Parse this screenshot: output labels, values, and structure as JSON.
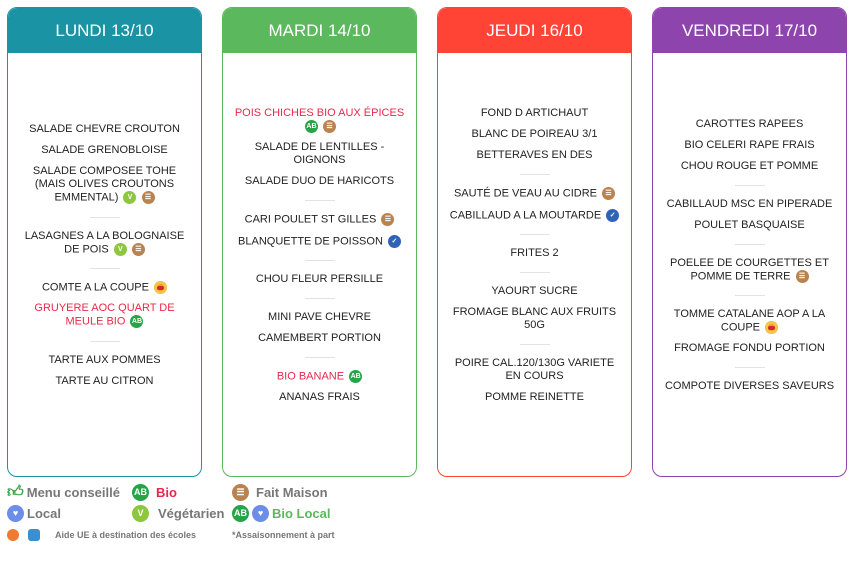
{
  "colors": {
    "lundi": "#1a93a5",
    "mardi": "#5cb85c",
    "jeudi": "#ff4436",
    "vendredi": "#8e44ad"
  },
  "days": [
    {
      "key": "lundi",
      "title": "LUNDI 13/10",
      "groups": [
        [
          {
            "text": "SALADE CHEVRE CROUTON",
            "icons": []
          },
          {
            "text": "SALADE GRENOBLOISE",
            "icons": []
          },
          {
            "text": "SALADE COMPOSEE TOHE (MAIS OLIVES CROUTONS EMMENTAL)",
            "icons": [
              "veg",
              "fm"
            ]
          }
        ],
        [
          {
            "text": "LASAGNES A LA BOLOGNAISE DE POIS",
            "icons": [
              "veg",
              "fm"
            ]
          }
        ],
        [
          {
            "text": "COMTE A LA COUPE",
            "icons": [
              "aop"
            ]
          },
          {
            "text": "GRUYERE AOC QUART DE MEULE BIO",
            "red": true,
            "icons": [
              "bio"
            ]
          }
        ],
        [
          {
            "text": "TARTE AUX POMMES",
            "icons": []
          },
          {
            "text": "TARTE AU CITRON",
            "icons": []
          }
        ]
      ]
    },
    {
      "key": "mardi",
      "title": "MARDI 14/10",
      "groups": [
        [
          {
            "text": "POIS CHICHES BIO AUX ÉPICES",
            "red": true,
            "icons": [
              "bio",
              "fm"
            ]
          },
          {
            "text": "SALADE DE LENTILLES - OIGNONS",
            "icons": []
          },
          {
            "text": "SALADE DUO DE HARICOTS",
            "icons": []
          }
        ],
        [
          {
            "text": "CARI POULET ST GILLES",
            "icons": [
              "fm"
            ]
          },
          {
            "text": "BLANQUETTE DE POISSON",
            "icons": [
              "msc"
            ]
          }
        ],
        [
          {
            "text": "CHOU FLEUR PERSILLE",
            "icons": []
          }
        ],
        [
          {
            "text": "MINI PAVE CHEVRE",
            "icons": []
          },
          {
            "text": "CAMEMBERT PORTION",
            "icons": []
          }
        ],
        [
          {
            "text": "BIO BANANE",
            "red": true,
            "icons": [
              "bio"
            ]
          },
          {
            "text": "ANANAS FRAIS",
            "icons": []
          }
        ]
      ]
    },
    {
      "key": "jeudi",
      "title": "JEUDI 16/10",
      "groups": [
        [
          {
            "text": "FOND D ARTICHAUT",
            "icons": []
          },
          {
            "text": "BLANC DE POIREAU 3/1",
            "icons": []
          },
          {
            "text": "BETTERAVES EN DES",
            "icons": []
          }
        ],
        [
          {
            "text": "SAUTÉ DE VEAU AU CIDRE",
            "icons": [
              "fm"
            ]
          },
          {
            "text": "CABILLAUD A LA MOUTARDE",
            "icons": [
              "msc"
            ]
          }
        ],
        [
          {
            "text": "FRITES 2",
            "icons": []
          }
        ],
        [
          {
            "text": "YAOURT SUCRE",
            "icons": []
          },
          {
            "text": "FROMAGE BLANC AUX FRUITS 50G",
            "icons": []
          }
        ],
        [
          {
            "text": "POIRE CAL.120/130G VARIETE EN COURS",
            "icons": []
          },
          {
            "text": "POMME REINETTE",
            "icons": []
          }
        ]
      ]
    },
    {
      "key": "vendredi",
      "title": "VENDREDI 17/10",
      "groups": [
        [
          {
            "text": "CAROTTES RAPEES",
            "icons": []
          },
          {
            "text": "BIO CELERI RAPE FRAIS",
            "icons": []
          },
          {
            "text": "CHOU ROUGE ET POMME",
            "icons": []
          }
        ],
        [
          {
            "text": "CABILLAUD MSC EN PIPERADE",
            "icons": []
          },
          {
            "text": "POULET BASQUAISE",
            "icons": []
          }
        ],
        [
          {
            "text": "POELEE DE COURGETTES ET POMME DE TERRE",
            "icons": [
              "fm"
            ]
          }
        ],
        [
          {
            "text": "TOMME CATALANE AOP A LA COUPE",
            "icons": [
              "aop"
            ]
          },
          {
            "text": "FROMAGE FONDU PORTION",
            "icons": []
          }
        ],
        [
          {
            "text": "COMPOTE DIVERSES SAVEURS",
            "icons": []
          }
        ]
      ]
    }
  ],
  "legend": {
    "menu_conseille": "Menu conseillé",
    "bio": "Bio",
    "fait_maison": "Fait Maison",
    "local": "Local",
    "vegetarien": "Végétarien",
    "bio_local": "Bio Local",
    "aide_ue": "Aide UE à destination des écoles",
    "assaisonnement": "*Assaisonnement à part",
    "bio_color": "#e8294a",
    "bio_local_color": "#5cb85c"
  }
}
